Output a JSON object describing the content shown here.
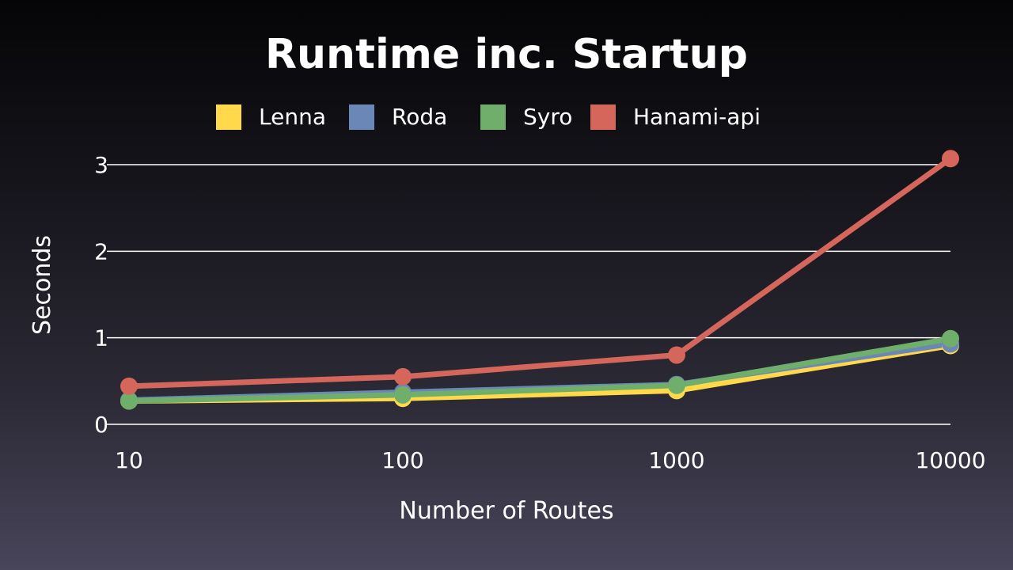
{
  "chart_data": {
    "type": "line",
    "title": "Runtime inc. Startup",
    "xlabel": "Number of Routes",
    "ylabel": "Seconds",
    "x_scale": "log",
    "x": [
      10,
      100,
      1000,
      10000
    ],
    "x_tick_labels": [
      "10",
      "100",
      "1000",
      "10000"
    ],
    "ylim": [
      0,
      3
    ],
    "y_ticks": [
      0,
      1,
      2,
      3
    ],
    "grid": true,
    "legend_position": "top-center",
    "series": [
      {
        "name": "Lenna",
        "color": "#ffd94a",
        "values": [
          0.27,
          0.3,
          0.39,
          0.91
        ]
      },
      {
        "name": "Roda",
        "color": "#6a87b8",
        "values": [
          0.28,
          0.37,
          0.46,
          0.93
        ]
      },
      {
        "name": "Syro",
        "color": "#6fae6b",
        "values": [
          0.27,
          0.34,
          0.45,
          0.99
        ]
      },
      {
        "name": "Hanami-api",
        "color": "#d4665b",
        "values": [
          0.44,
          0.55,
          0.8,
          3.07
        ]
      }
    ]
  }
}
